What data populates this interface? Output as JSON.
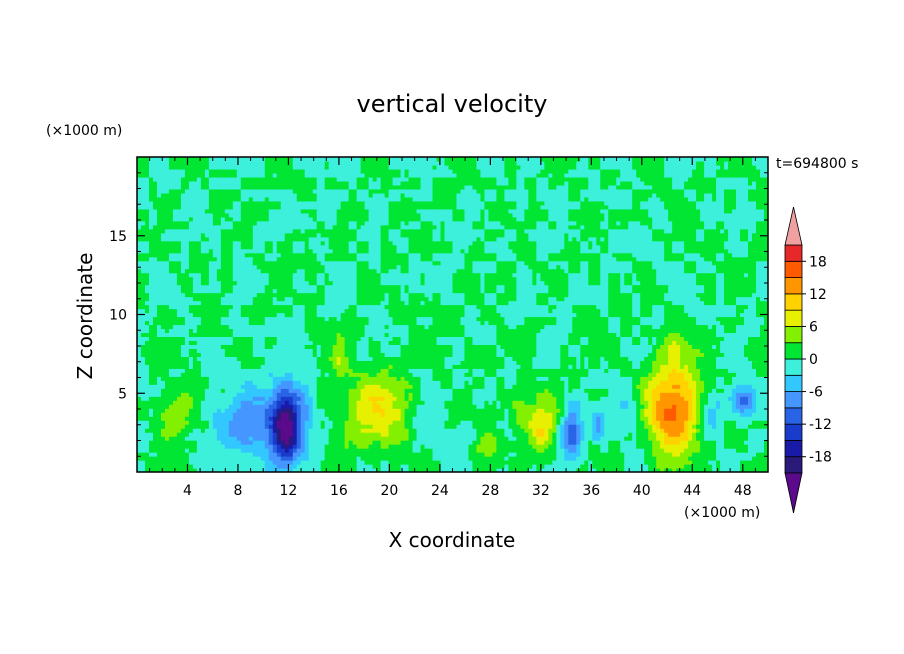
{
  "chart_data": {
    "type": "heatmap",
    "title": "vertical velocity",
    "time_label": "t=694800 s",
    "xlabel": "X coordinate",
    "ylabel": "Z coordinate",
    "x_unit": "(×1000 m)",
    "y_unit": "(×1000 m)",
    "xlim": [
      0,
      50
    ],
    "ylim": [
      0,
      20
    ],
    "x_ticks": [
      4,
      8,
      12,
      16,
      20,
      24,
      28,
      32,
      36,
      40,
      44,
      48
    ],
    "y_ticks": [
      5,
      10,
      15
    ],
    "colorbar": {
      "levels": [
        -21,
        -18,
        -15,
        -12,
        -9,
        -6,
        -3,
        0,
        3,
        6,
        9,
        12,
        15,
        18,
        21
      ],
      "tick_labels": [
        18,
        12,
        6,
        0,
        -6,
        -12,
        -18
      ],
      "extend": "both",
      "colors": [
        "#5a0a8a",
        "#2a1a7a",
        "#1a1aa8",
        "#1a3ccc",
        "#2a64e6",
        "#4696ff",
        "#32c8ff",
        "#3cf0dc",
        "#00e632",
        "#82f000",
        "#e6f000",
        "#ffd200",
        "#ff9600",
        "#ff5a00",
        "#e62828",
        "#f0a0a0"
      ]
    },
    "features": [
      {
        "x": 11.8,
        "z": 3.0,
        "value": -20,
        "sx": 1.0,
        "sz": 2.2
      },
      {
        "x": 10.5,
        "z": 3.0,
        "value": -7,
        "sx": 2.2,
        "sz": 2.5
      },
      {
        "x": 7.5,
        "z": 3.0,
        "value": -5,
        "sx": 2.0,
        "sz": 2.0
      },
      {
        "x": 13.2,
        "z": 3.5,
        "value": -5,
        "sx": 0.9,
        "sz": 2.2
      },
      {
        "x": 3.0,
        "z": 3.5,
        "value": 6,
        "sx": 1.5,
        "sz": 1.4
      },
      {
        "x": 19.0,
        "z": 4.0,
        "value": 9,
        "sx": 2.6,
        "sz": 2.4
      },
      {
        "x": 16.0,
        "z": 7.5,
        "value": 4,
        "sx": 0.7,
        "sz": 1.4
      },
      {
        "x": 27.5,
        "z": 1.5,
        "value": 5,
        "sx": 1.1,
        "sz": 1.1
      },
      {
        "x": 30.3,
        "z": 4.0,
        "value": 5,
        "sx": 0.8,
        "sz": 1.4
      },
      {
        "x": 32.0,
        "z": 3.0,
        "value": 9,
        "sx": 1.1,
        "sz": 1.8
      },
      {
        "x": 34.5,
        "z": 2.5,
        "value": -12,
        "sx": 0.7,
        "sz": 1.6
      },
      {
        "x": 36.5,
        "z": 3.0,
        "value": -7,
        "sx": 0.6,
        "sz": 1.0
      },
      {
        "x": 42.5,
        "z": 4.0,
        "value": 16,
        "sx": 2.1,
        "sz": 2.9
      },
      {
        "x": 42.5,
        "z": 8.0,
        "value": 4,
        "sx": 0.8,
        "sz": 1.0
      },
      {
        "x": 39.0,
        "z": 3.5,
        "value": -4,
        "sx": 1.1,
        "sz": 1.6
      },
      {
        "x": 45.5,
        "z": 3.5,
        "value": -5,
        "sx": 1.0,
        "sz": 1.6
      },
      {
        "x": 48.0,
        "z": 4.5,
        "value": -12,
        "sx": 0.9,
        "sz": 0.9
      },
      {
        "x": 23.0,
        "z": 3.0,
        "value": -3,
        "sx": 1.2,
        "sz": 1.4
      },
      {
        "x": 26.0,
        "z": 2.0,
        "value": -2.5,
        "sx": 1.0,
        "sz": 1.0
      }
    ]
  }
}
